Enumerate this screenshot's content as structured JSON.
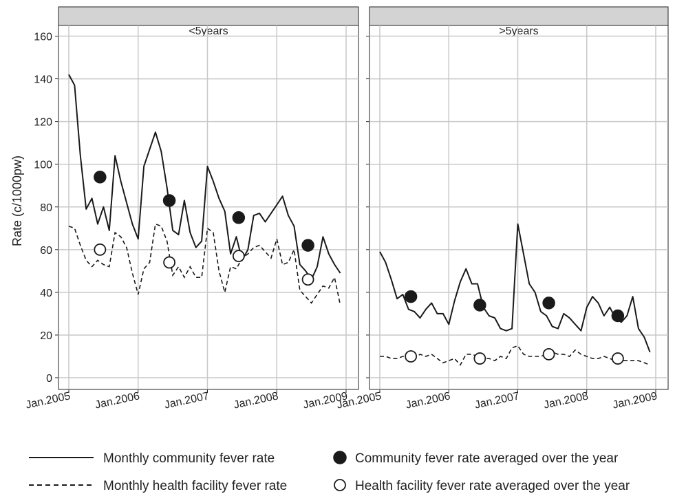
{
  "chart_data": {
    "type": "line",
    "ylabel": "Rate (c/1000pw)",
    "ylim": [
      0,
      165
    ],
    "yticks": [
      0,
      20,
      40,
      60,
      80,
      100,
      120,
      140,
      160
    ],
    "x_tick_labels": [
      "Jan.2005",
      "Jan.2006",
      "Jan.2007",
      "Jan.2008",
      "Jan.2009"
    ],
    "xlim": [
      2005.0,
      2009.0
    ],
    "grid": true,
    "legend_position": "bottom",
    "legend": {
      "monthly_community": "Monthly community fever rate",
      "monthly_health": "Monthly health facility fever rate",
      "annual_community": "Community fever rate averaged over the year",
      "annual_health": "Health facility fever rate averaged over the year"
    },
    "panels": [
      {
        "label": "<5years",
        "monthly_community": [
          142,
          137,
          104,
          79,
          84,
          72,
          80,
          69,
          104,
          92,
          82,
          72,
          65,
          99,
          107,
          115,
          106,
          89,
          69,
          67,
          83,
          68,
          61,
          64,
          99,
          92,
          84,
          78,
          58,
          66,
          55,
          60,
          76,
          77,
          73,
          77,
          81,
          85,
          76,
          71,
          53,
          50,
          46,
          52,
          66,
          58,
          53,
          49
        ],
        "monthly_health": [
          71,
          70,
          62,
          55,
          52,
          55,
          53,
          52,
          68,
          66,
          61,
          49,
          39,
          51,
          54,
          72,
          71,
          64,
          48,
          52,
          47,
          52,
          47,
          47,
          70,
          68,
          50,
          40,
          52,
          51,
          56,
          58,
          61,
          62,
          59,
          56,
          65,
          53,
          54,
          60,
          41,
          38,
          35,
          39,
          43,
          42,
          47,
          34
        ],
        "annual_community": [
          94,
          83,
          75,
          62
        ],
        "annual_health": [
          60,
          54,
          57,
          46
        ]
      },
      {
        "label": ">5years",
        "monthly_community": [
          59,
          54,
          46,
          37,
          39,
          32,
          31,
          28,
          32,
          35,
          30,
          30,
          25,
          36,
          45,
          51,
          44,
          44,
          33,
          29,
          28,
          23,
          22,
          23,
          72,
          58,
          44,
          40,
          31,
          29,
          24,
          23,
          30,
          28,
          25,
          22,
          33,
          38,
          35,
          29,
          33,
          28,
          26,
          29,
          38,
          23,
          19,
          12
        ],
        "monthly_health": [
          10,
          10,
          9,
          9,
          10,
          10,
          9,
          11,
          10,
          11,
          9,
          7,
          8,
          9,
          6,
          11,
          11,
          10,
          9,
          9,
          8,
          10,
          9,
          14,
          15,
          11,
          10,
          10,
          10,
          11,
          12,
          11,
          11,
          10,
          13,
          11,
          10,
          9,
          9,
          10,
          9,
          8,
          8,
          8,
          8,
          8,
          7,
          6
        ],
        "annual_community": [
          38,
          34,
          35,
          29
        ],
        "annual_health": [
          10,
          9,
          11,
          9
        ]
      }
    ]
  }
}
